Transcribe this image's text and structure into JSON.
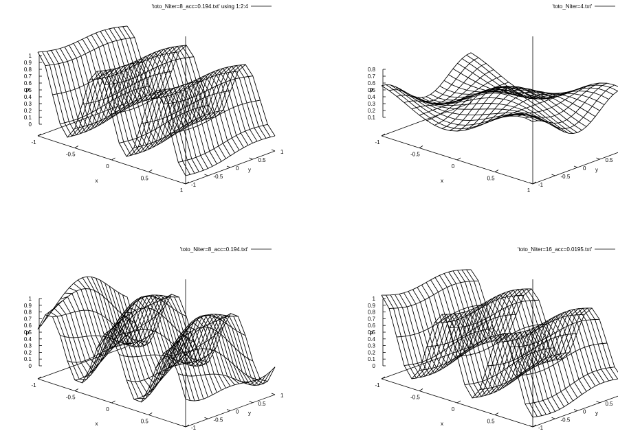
{
  "chart_data": [
    {
      "type": "surface",
      "legend": "'toto_Niter=8_acc=0.194.txt' using 1:2:4",
      "xlabel": "x",
      "ylabel": "y",
      "zlabel": "p",
      "x_ticks": [
        "-1",
        "-0.5",
        "0",
        "0.5",
        "1"
      ],
      "y_ticks": [
        "-1",
        "-0.5",
        "0",
        "0.5",
        "1"
      ],
      "z_ticks": [
        "0",
        "0.1",
        "0.2",
        "0.3",
        "0.4",
        "0.5",
        "0.6",
        "0.7",
        "0.8",
        "0.9",
        "1"
      ],
      "xlim": [
        -1,
        1
      ],
      "ylim": [
        -1,
        1
      ],
      "zlim": [
        -0.3,
        1
      ],
      "grid_size": 21,
      "surface": {
        "kind": "ridges_x",
        "freq": 2,
        "amp": 0.5,
        "offset": 0.5,
        "yamp": 0.04,
        "flat": false
      }
    },
    {
      "type": "surface",
      "legend": "'toto_Niter=4.txt'",
      "xlabel": "x",
      "ylabel": "y",
      "zlabel": "p",
      "x_ticks": [
        "-1",
        "-0.5",
        "0",
        "0.5",
        "1"
      ],
      "y_ticks": [
        "-1",
        "-0.5",
        "0",
        "0.5",
        "1"
      ],
      "z_ticks": [
        "0.1",
        "0.2",
        "0.3",
        "0.4",
        "0.5",
        "0.6",
        "0.7",
        "0.8"
      ],
      "xlim": [
        -1,
        1
      ],
      "ylim": [
        -1,
        1
      ],
      "zlim": [
        -0.2,
        0.8
      ],
      "grid_size": 21,
      "surface": {
        "kind": "saddle",
        "freq": 1,
        "amp": 0.2,
        "offset": 0.45,
        "yamp": 0.15,
        "flat": false
      }
    },
    {
      "type": "surface",
      "legend": "'toto_Niter=8_acc=0.194.txt'",
      "xlabel": "x",
      "ylabel": "y",
      "zlabel": "p",
      "x_ticks": [
        "-1",
        "-0.5",
        "0",
        "0.5",
        "1"
      ],
      "y_ticks": [
        "-1",
        "-0.5",
        "0",
        "0.5",
        "1"
      ],
      "z_ticks": [
        "0",
        "0.1",
        "0.2",
        "0.3",
        "0.4",
        "0.5",
        "0.6",
        "0.7",
        "0.8",
        "0.9",
        "1"
      ],
      "xlim": [
        -1,
        1
      ],
      "ylim": [
        -1,
        1
      ],
      "zlim": [
        -0.3,
        1
      ],
      "grid_size": 21,
      "surface": {
        "kind": "ridges_xy",
        "freq": 2,
        "amp": 0.45,
        "offset": 0.5,
        "yamp": 0.12,
        "flat": false
      }
    },
    {
      "type": "surface",
      "legend": "'toto_Niter=16_acc=0.0195.txt'",
      "xlabel": "x",
      "ylabel": "y",
      "zlabel": "p",
      "x_ticks": [
        "-1",
        "-0.5",
        "0",
        "0.5",
        "1"
      ],
      "y_ticks": [
        "-1",
        "-0.5",
        "0",
        "0.5",
        "1"
      ],
      "z_ticks": [
        "0",
        "0.1",
        "0.2",
        "0.3",
        "0.4",
        "0.5",
        "0.6",
        "0.7",
        "0.8",
        "0.9",
        "1"
      ],
      "xlim": [
        -1,
        1
      ],
      "ylim": [
        -1,
        1
      ],
      "zlim": [
        -0.3,
        1
      ],
      "grid_size": 21,
      "surface": {
        "kind": "ridges_x",
        "freq": 2,
        "amp": 0.5,
        "offset": 0.5,
        "yamp": 0.06,
        "flat": false
      }
    }
  ]
}
